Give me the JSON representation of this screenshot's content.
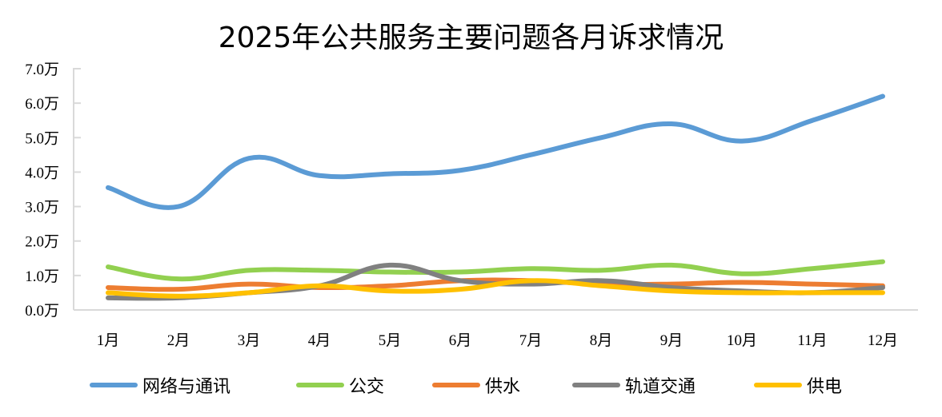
{
  "chart_data": {
    "type": "line",
    "title": "2025年公共服务主要问题各月诉求情况",
    "xlabel": "",
    "ylabel": "",
    "ylim": [
      0,
      7
    ],
    "y_ticks": [
      "0.0万",
      "1.0万",
      "2.0万",
      "3.0万",
      "4.0万",
      "5.0万",
      "6.0万",
      "7.0万"
    ],
    "categories": [
      "1月",
      "2月",
      "3月",
      "4月",
      "5月",
      "6月",
      "7月",
      "8月",
      "9月",
      "10月",
      "11月",
      "12月"
    ],
    "unit": "万",
    "grid": false,
    "smooth": true,
    "legend_position": "bottom",
    "series": [
      {
        "name": "网络与通讯",
        "color": "#5B9BD5",
        "values": [
          3.55,
          3.0,
          4.4,
          3.9,
          3.95,
          4.05,
          4.5,
          5.0,
          5.4,
          4.9,
          5.5,
          6.2
        ]
      },
      {
        "name": "公交",
        "color": "#92D050",
        "values": [
          1.25,
          0.9,
          1.15,
          1.15,
          1.1,
          1.1,
          1.2,
          1.15,
          1.3,
          1.05,
          1.2,
          1.4
        ]
      },
      {
        "name": "供水",
        "color": "#ED7D31",
        "values": [
          0.65,
          0.6,
          0.75,
          0.65,
          0.7,
          0.85,
          0.85,
          0.75,
          0.75,
          0.8,
          0.75,
          0.7
        ]
      },
      {
        "name": "轨道交通",
        "color": "#808080",
        "values": [
          0.35,
          0.35,
          0.5,
          0.7,
          1.3,
          0.85,
          0.75,
          0.85,
          0.65,
          0.55,
          0.5,
          0.65
        ]
      },
      {
        "name": "供电",
        "color": "#FFC000",
        "values": [
          0.5,
          0.4,
          0.5,
          0.7,
          0.55,
          0.6,
          0.85,
          0.7,
          0.55,
          0.5,
          0.5,
          0.5
        ]
      }
    ]
  }
}
